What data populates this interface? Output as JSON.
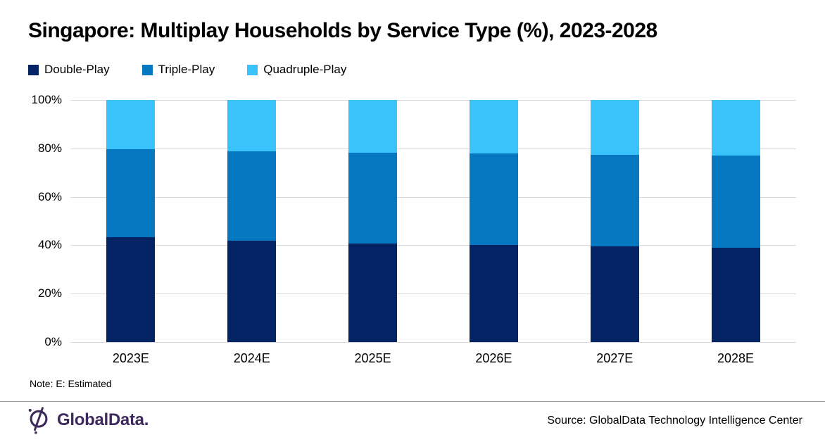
{
  "title": "Singapore: Multiplay Households by Service Type (%), 2023-2028",
  "note": "Note: E: Estimated",
  "source": "Source: GlobalData Technology Intelligence Center",
  "logo": {
    "brand": "GlobalData.",
    "color": "#3D2A5C"
  },
  "colors": {
    "grid": "#D9D9D9",
    "divider": "#9B9B9B",
    "text": "#000000"
  },
  "chart_data": {
    "type": "bar",
    "stacked": true,
    "stacked_total": 100,
    "title": "Singapore: Multiplay Households by Service Type (%), 2023-2028",
    "categories": [
      "2023E",
      "2024E",
      "2025E",
      "2026E",
      "2027E",
      "2028E"
    ],
    "series": [
      {
        "name": "Double-Play",
        "color": "#042365",
        "values": [
          43.2,
          41.8,
          40.8,
          40.0,
          39.6,
          39.0
        ]
      },
      {
        "name": "Triple-Play",
        "color": "#0578C1",
        "values": [
          36.4,
          37.1,
          37.5,
          37.9,
          37.7,
          38.0
        ]
      },
      {
        "name": "Quadruple-Play",
        "color": "#3AC2FB",
        "values": [
          20.4,
          21.1,
          21.7,
          22.1,
          22.7,
          23.0
        ]
      }
    ],
    "xlabel": "",
    "ylabel": "",
    "ylim": [
      0,
      100
    ],
    "yticks": [
      0,
      20,
      40,
      60,
      80,
      100
    ],
    "ytick_suffix": "%",
    "grid": true,
    "legend_position": "top-left"
  }
}
